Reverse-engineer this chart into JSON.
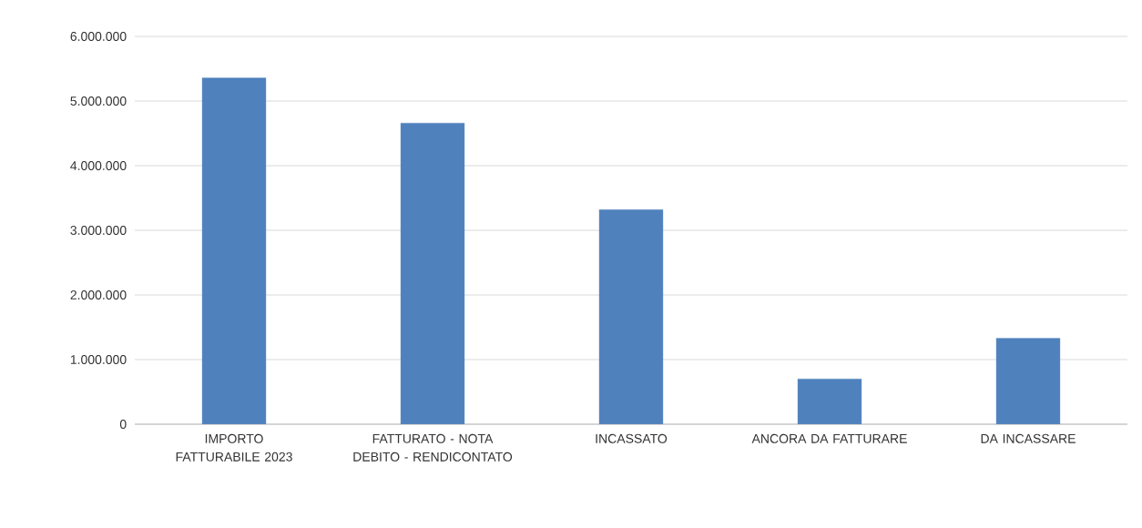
{
  "chart_data": {
    "type": "bar",
    "categories": [
      "IMPORTO FATTURABILE 2023",
      "FATTURATO - NOTA DEBITO - RENDICONTATO",
      "INCASSATO",
      "ANCORA DA FATTURARE",
      "DA INCASSARE"
    ],
    "values": [
      5360000,
      4660000,
      3320000,
      700000,
      1330000
    ],
    "color": "#4f81bd",
    "ylim": [
      0,
      6000000
    ],
    "yticks": [
      0,
      {
        "value": 1000000,
        "label": "1.000.000"
      },
      {
        "value": 2000000,
        "label": "2.000.000"
      },
      {
        "value": 3000000,
        "label": "3.000.000"
      },
      {
        "value": 4000000,
        "label": "4.000.000"
      },
      {
        "value": 5000000,
        "label": "5.000.000"
      },
      {
        "value": 6000000,
        "label": "6.000.000"
      }
    ],
    "grid": "y"
  }
}
